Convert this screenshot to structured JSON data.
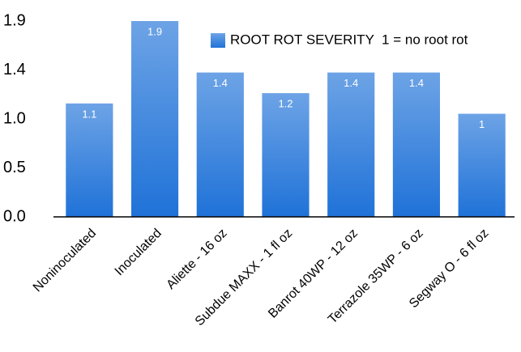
{
  "chart_data": {
    "type": "bar",
    "categories": [
      "Noninoculated",
      "Inoculated",
      "Aliette - 16 oz",
      "Subdue MAXX - 1 fl oz",
      "Banrot 40WP - 12 oz",
      "Terrazole 35WP - 6 oz",
      "Segway O - 6 fl oz"
    ],
    "series": [
      {
        "name": "ROOT ROT SEVERITY  1 = no root rot",
        "color": "#1f72d8",
        "values": [
          1.1,
          1.9,
          1.4,
          1.2,
          1.4,
          1.4,
          1
        ]
      }
    ],
    "ylim": [
      0,
      1.9
    ],
    "yticks": [
      {
        "value": 0,
        "label": "0.0"
      },
      {
        "value": 0.475,
        "label": "0.5"
      },
      {
        "value": 0.95,
        "label": "1.0"
      },
      {
        "value": 1.425,
        "label": "1.4"
      },
      1.9
    ],
    "grid": false,
    "legend": "top-right"
  }
}
